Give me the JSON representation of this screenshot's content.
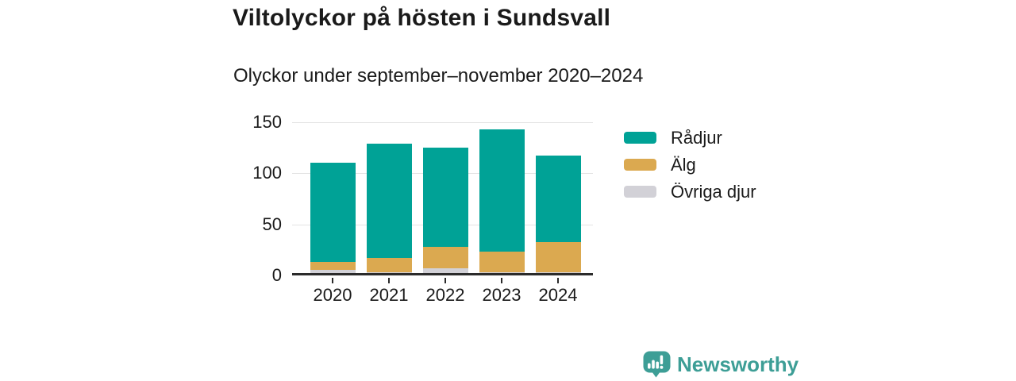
{
  "title": "Viltolyckor på hösten i Sundsvall",
  "subtitle": "Olyckor under september–november 2020–2024",
  "chart_data": {
    "type": "bar",
    "stacked": true,
    "title": "Viltolyckor på hösten i Sundsvall",
    "subtitle": "Olyckor under september–november 2020–2024",
    "categories": [
      "2020",
      "2021",
      "2022",
      "2023",
      "2024"
    ],
    "series": [
      {
        "name": "Rådjur",
        "color": "#00a296",
        "values": [
          97,
          112,
          97,
          120,
          85
        ]
      },
      {
        "name": "Älg",
        "color": "#dba950",
        "values": [
          8,
          14,
          21,
          20,
          29
        ]
      },
      {
        "name": "Övriga djur",
        "color": "#d2d1d7",
        "values": [
          3,
          1,
          5,
          1,
          1
        ]
      }
    ],
    "stack_order_bottom_to_top": [
      "Övriga djur",
      "Älg",
      "Rådjur"
    ],
    "totals": [
      108,
      127,
      123,
      141,
      115
    ],
    "xlabel": "",
    "ylabel": "",
    "ylim": [
      0,
      150
    ],
    "yticks": [
      0,
      50,
      100,
      150
    ],
    "grid": true,
    "legend_position": "right"
  },
  "colors": {
    "text": "#1a1a1a",
    "axis": "#2b2b2b",
    "gridline": "#e3e3e3",
    "brand_teal": "#3d9e96"
  },
  "brand": {
    "name": "Newsworthy",
    "logo_icon": "bar-chart-speech-bubble-icon"
  }
}
